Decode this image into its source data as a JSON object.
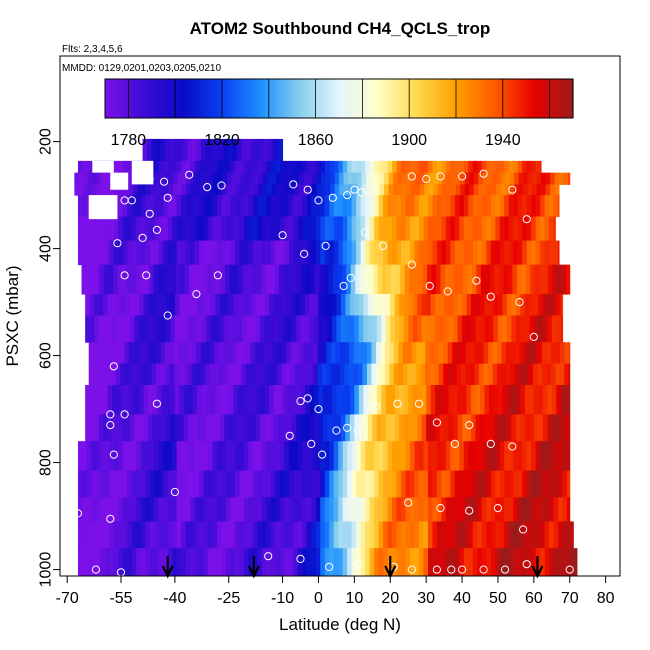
{
  "chart_data": {
    "type": "heatmap",
    "title": "ATOM2 Southbound CH4_QCLS_trop",
    "flights_note": "Flts: 2,3,4,5,6",
    "dates_note": "MMDD: 0129,0201,0203,0205,0210",
    "xlabel": "Latitude (deg N)",
    "ylabel": "PSXC (mbar)",
    "x_ticks": [
      -70,
      -55,
      -40,
      -25,
      -10,
      0,
      10,
      20,
      30,
      40,
      50,
      60,
      70,
      80
    ],
    "x_tick_labels": [
      "-70",
      "-55",
      "-40",
      "-25",
      "-10",
      "0",
      "10",
      "20",
      "30",
      "40",
      "50",
      "60",
      "70",
      "80"
    ],
    "y_ticks": [
      200,
      400,
      600,
      800,
      1000
    ],
    "y_tick_labels": [
      "200",
      "400",
      "600",
      "800",
      "1000"
    ],
    "xlim": [
      -70,
      85
    ],
    "ylim": [
      1010,
      40
    ],
    "colorbar": {
      "range": [
        1770,
        1970
      ],
      "ticks": [
        1780,
        1820,
        1860,
        1900,
        1940
      ],
      "tick_labels": [
        "1780",
        "1820",
        "1860",
        "1900",
        "1940"
      ],
      "colors": [
        "#7b11e8",
        "#3d0bd6",
        "#0a0ac6",
        "#0a40f2",
        "#1e90ff",
        "#87ceeb",
        "#e6f4ff",
        "#ffffc8",
        "#ffd84d",
        "#ffa000",
        "#ff5a00",
        "#e80000",
        "#9b1b1b"
      ]
    },
    "profile_markers_lat": [
      -42,
      -18,
      20,
      61
    ],
    "sample_points": [
      [
        -52,
        205
      ],
      [
        -48,
        250
      ],
      [
        -47,
        270
      ],
      [
        -43,
        275
      ],
      [
        -36,
        262
      ],
      [
        -31,
        285
      ],
      [
        -27,
        282
      ],
      [
        -54,
        310
      ],
      [
        -52,
        310
      ],
      [
        -49,
        380
      ],
      [
        -47,
        335
      ],
      [
        -45,
        365
      ],
      [
        -42,
        305
      ],
      [
        -56,
        390
      ],
      [
        -54,
        450
      ],
      [
        -48,
        450
      ],
      [
        -42,
        525
      ],
      [
        -34,
        485
      ],
      [
        -28,
        450
      ],
      [
        -57,
        620
      ],
      [
        -58,
        730
      ],
      [
        -58,
        710
      ],
      [
        -54,
        710
      ],
      [
        -45,
        690
      ],
      [
        -57,
        785
      ],
      [
        -40,
        855
      ],
      [
        -67,
        895
      ],
      [
        -58,
        905
      ],
      [
        -62,
        1000
      ],
      [
        -55,
        1005
      ],
      [
        -7,
        280
      ],
      [
        -3,
        290
      ],
      [
        0,
        310
      ],
      [
        4,
        305
      ],
      [
        8,
        300
      ],
      [
        10,
        290
      ],
      [
        12,
        295
      ],
      [
        -10,
        375
      ],
      [
        -4,
        410
      ],
      [
        2,
        395
      ],
      [
        7,
        470
      ],
      [
        9,
        455
      ],
      [
        13,
        370
      ],
      [
        18,
        395
      ],
      [
        -5,
        685
      ],
      [
        -3,
        680
      ],
      [
        0,
        700
      ],
      [
        5,
        740
      ],
      [
        8,
        735
      ],
      [
        11,
        740
      ],
      [
        16,
        695
      ],
      [
        -8,
        750
      ],
      [
        -2,
        765
      ],
      [
        1,
        785
      ],
      [
        -14,
        975
      ],
      [
        -5,
        980
      ],
      [
        3,
        995
      ],
      [
        11,
        990
      ],
      [
        26,
        265
      ],
      [
        30,
        270
      ],
      [
        34,
        265
      ],
      [
        40,
        265
      ],
      [
        46,
        260
      ],
      [
        54,
        290
      ],
      [
        58,
        345
      ],
      [
        26,
        430
      ],
      [
        31,
        470
      ],
      [
        36,
        480
      ],
      [
        44,
        460
      ],
      [
        48,
        490
      ],
      [
        56,
        500
      ],
      [
        60,
        565
      ],
      [
        22,
        690
      ],
      [
        28,
        690
      ],
      [
        33,
        725
      ],
      [
        38,
        765
      ],
      [
        42,
        730
      ],
      [
        48,
        765
      ],
      [
        54,
        770
      ],
      [
        25,
        875
      ],
      [
        34,
        885
      ],
      [
        42,
        890
      ],
      [
        50,
        885
      ],
      [
        57,
        925
      ],
      [
        58,
        990
      ],
      [
        21,
        995
      ],
      [
        26,
        1000
      ],
      [
        33,
        1000
      ],
      [
        37,
        1000
      ],
      [
        40,
        1000
      ],
      [
        46,
        1000
      ],
      [
        52,
        1000
      ],
      [
        70,
        1000
      ]
    ]
  }
}
